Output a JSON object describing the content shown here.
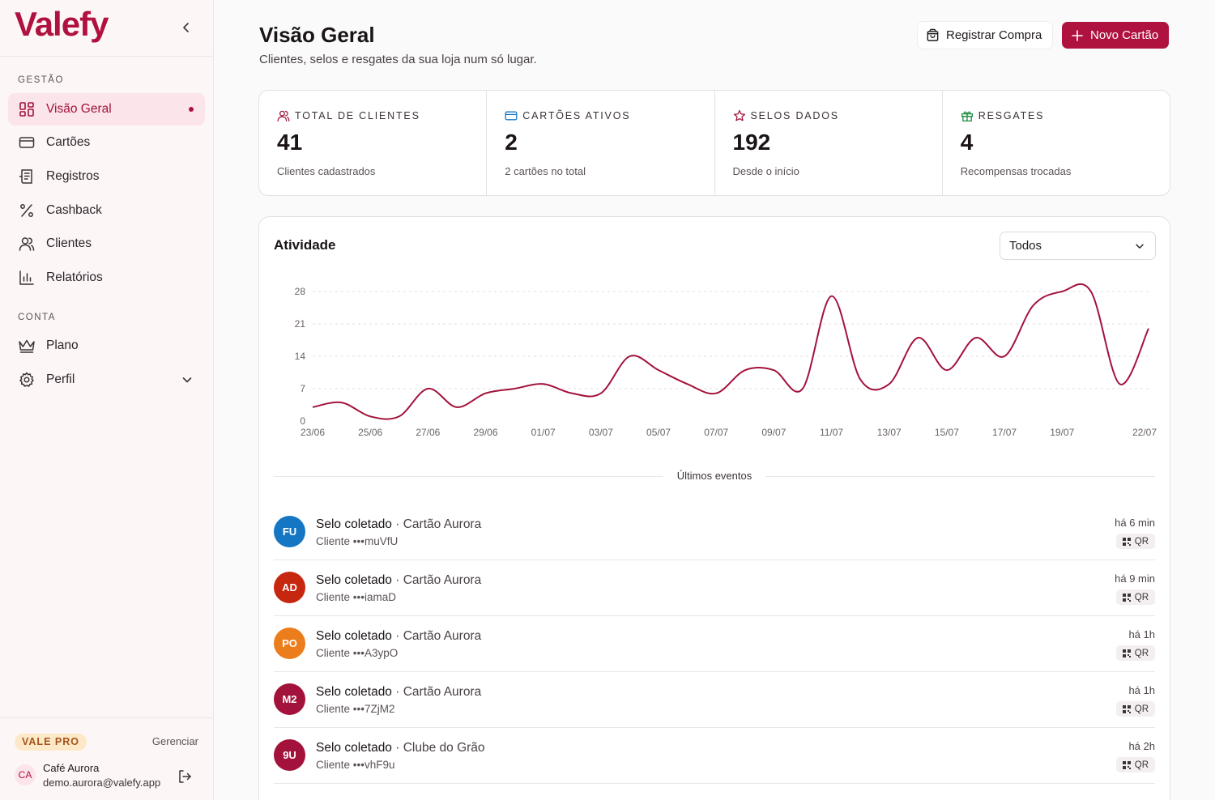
{
  "brand": {
    "name": "Valefy"
  },
  "sidebar": {
    "sections": [
      {
        "title": "GESTÃO"
      },
      {
        "title": "CONTA"
      }
    ],
    "items": [
      {
        "label": "Visão Geral",
        "icon": "grid-icon",
        "active": true
      },
      {
        "label": "Cartões",
        "icon": "card-icon"
      },
      {
        "label": "Registros",
        "icon": "receipt-icon"
      },
      {
        "label": "Cashback",
        "icon": "percent-icon"
      },
      {
        "label": "Clientes",
        "icon": "users-icon"
      },
      {
        "label": "Relatórios",
        "icon": "bar-chart-icon"
      },
      {
        "label": "Plano",
        "icon": "crown-icon"
      },
      {
        "label": "Perfil",
        "icon": "gear-icon"
      }
    ],
    "footer": {
      "plan": "VALE PRO",
      "manage": "Gerenciar",
      "avatar_initials": "CA",
      "user_name": "Café Aurora",
      "user_email": "demo.aurora@valefy.app"
    }
  },
  "header": {
    "title": "Visão Geral",
    "subtitle": "Clientes, selos e resgates da sua loja num só lugar.",
    "btn_register": "Registrar Compra",
    "btn_new_card": "Novo Cartão"
  },
  "stats": [
    {
      "label": "TOTAL DE CLIENTES",
      "value": "41",
      "note": "Clientes cadastrados",
      "icon": "users-icon"
    },
    {
      "label": "CARTÕES ATIVOS",
      "value": "2",
      "note": "2 cartões no total",
      "icon": "card-icon"
    },
    {
      "label": "SELOS DADOS",
      "value": "192",
      "note": "Desde o início",
      "icon": "star-icon"
    },
    {
      "label": "RESGATES",
      "value": "4",
      "note": "Recompensas trocadas",
      "icon": "gift-icon"
    }
  ],
  "activity": {
    "title": "Atividade",
    "filter_value": "Todos",
    "events_label": "Últimos eventos"
  },
  "chart_data": {
    "type": "line",
    "x": [
      "23/06",
      "24/06",
      "25/06",
      "26/06",
      "27/06",
      "28/06",
      "29/06",
      "30/06",
      "01/07",
      "02/07",
      "03/07",
      "04/07",
      "05/07",
      "06/07",
      "07/07",
      "08/07",
      "09/07",
      "10/07",
      "11/07",
      "12/07",
      "13/07",
      "14/07",
      "15/07",
      "16/07",
      "17/07",
      "18/07",
      "19/07",
      "20/07",
      "21/07",
      "22/07"
    ],
    "x_tick_labels": [
      "23/06",
      "25/06",
      "27/06",
      "29/06",
      "01/07",
      "03/07",
      "05/07",
      "07/07",
      "09/07",
      "11/07",
      "13/07",
      "15/07",
      "17/07",
      "19/07",
      "22/07"
    ],
    "series": [
      {
        "values": [
          3,
          4,
          1,
          1,
          7,
          3,
          6,
          7,
          8,
          6,
          6,
          14,
          11,
          8,
          6,
          11,
          11,
          7,
          27,
          9,
          8,
          18,
          11,
          18,
          14,
          25,
          28,
          28,
          8,
          20
        ]
      }
    ],
    "ylim": [
      0,
      28
    ],
    "yticks": [
      0,
      7,
      14,
      21,
      28
    ],
    "grid": true,
    "color": "#a3123b"
  },
  "events": [
    {
      "initials": "FU",
      "color": "#1577c4",
      "title": "Selo coletado",
      "card": "Cartão Aurora",
      "client": "Cliente •••muVfU",
      "time": "há 6 min",
      "method": "QR"
    },
    {
      "initials": "AD",
      "color": "#c7260f",
      "title": "Selo coletado",
      "card": "Cartão Aurora",
      "client": "Cliente •••iamaD",
      "time": "há 9 min",
      "method": "QR"
    },
    {
      "initials": "PO",
      "color": "#ec7d1d",
      "title": "Selo coletado",
      "card": "Cartão Aurora",
      "client": "Cliente •••A3ypO",
      "time": "há 1h",
      "method": "QR"
    },
    {
      "initials": "M2",
      "color": "#a3123b",
      "title": "Selo coletado",
      "card": "Cartão Aurora",
      "client": "Cliente •••7ZjM2",
      "time": "há 1h",
      "method": "QR"
    },
    {
      "initials": "9U",
      "color": "#a3123b",
      "title": "Selo coletado",
      "card": "Clube do Grão",
      "client": "Cliente •••vhF9u",
      "time": "há 2h",
      "method": "QR"
    }
  ]
}
